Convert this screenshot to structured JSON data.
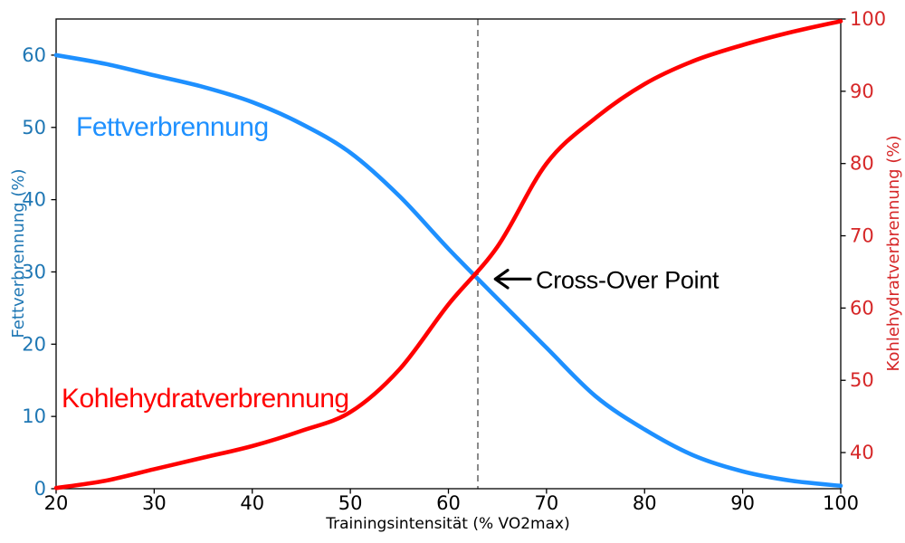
{
  "figure": {
    "background": "#ffffff"
  },
  "chart_data": {
    "type": "line",
    "title": "",
    "xlabel": "Trainingsintensität (% VO2max)",
    "xlim": [
      20,
      100
    ],
    "x_ticks": [
      20,
      30,
      40,
      50,
      60,
      70,
      80,
      90,
      100
    ],
    "grid": false,
    "legend": "none (series labeled by inline colored text annotations)",
    "left_axis": {
      "label": "Fettverbrennung (%)",
      "lim": [
        0,
        65
      ],
      "ticks": [
        0,
        10,
        20,
        30,
        40,
        50,
        60
      ],
      "color": "#1f77b4"
    },
    "right_axis": {
      "label": "Kohlehydratverbrennung (%)",
      "lim": [
        35,
        100
      ],
      "ticks": [
        40,
        50,
        60,
        70,
        80,
        90,
        100
      ],
      "color": "#d62728"
    },
    "x_samples": [
      20,
      25,
      30,
      35,
      40,
      45,
      50,
      55,
      60,
      65,
      70,
      75,
      80,
      85,
      90,
      95,
      100
    ],
    "series": [
      {
        "name": "Fettverbrennung",
        "axis": "left",
        "color": "#1E90FF",
        "line_width": 4.6,
        "values": [
          60,
          58.8,
          57.2,
          55.6,
          53.5,
          50.5,
          46.5,
          40.5,
          33.2,
          26.3,
          19.5,
          12.8,
          8.2,
          4.6,
          2.4,
          1.1,
          0.4
        ]
      },
      {
        "name": "Kohlehydratverbrennung",
        "axis": "right",
        "color": "#FF0000",
        "line_width": 4.6,
        "values": [
          35.1,
          36.1,
          37.7,
          39.3,
          40.9,
          43.0,
          45.6,
          51.5,
          60.5,
          68.5,
          80.0,
          86.3,
          91.0,
          94.2,
          96.4,
          98.2,
          99.7
        ]
      }
    ],
    "crossover_vline": {
      "x": 63,
      "color": "#8a8a8a",
      "style": "dashed",
      "width": 2
    },
    "annotations": {
      "fat_label": {
        "text": "Fettverbrennung",
        "color": "#1E90FF",
        "x": 22.0,
        "y_left": 49.0
      },
      "carb_label": {
        "text": "Kohlehydratverbrennung",
        "color": "#FF0000",
        "x": 20.6,
        "y_left": 11.3
      },
      "crossover": {
        "text": "Cross-Over Point",
        "color": "#000000",
        "text_x": 68.9,
        "text_y_left": 27.7,
        "arrow_tip_x": 64.7,
        "arrow_tip_y_left": 29.0
      }
    }
  }
}
